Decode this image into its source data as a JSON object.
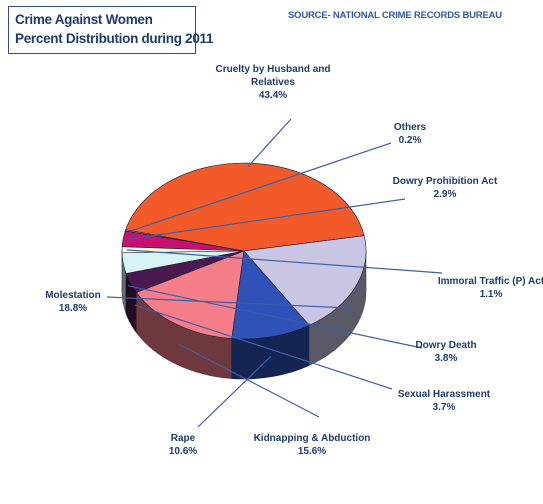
{
  "title_lines": [
    "Crime Against Women",
    "Percent Distribution during 2011"
  ],
  "source": "SOURCE- NATIONAL CRIME RECORDS BUREAU",
  "chart_data": {
    "type": "pie",
    "title": "Crime Against Women Percent Distribution during 2011",
    "slices": [
      {
        "label": [
          "Cruelty by Husband and",
          "Relatives"
        ],
        "value_label": "43.4%",
        "value": 43.4,
        "color": "#f25a2a"
      },
      {
        "label": [
          "Others"
        ],
        "value_label": "0.2%",
        "value": 0.2,
        "color": "#d8d8e8"
      },
      {
        "label": [
          "Dowry Prohibition Act"
        ],
        "value_label": "2.9%",
        "value": 2.9,
        "color": "#c8106e"
      },
      {
        "label": [
          "Immoral Traffic (P) Act"
        ],
        "value_label": "1.1%",
        "value": 1.1,
        "color": "#ffffd8"
      },
      {
        "label": [
          "Dowry Death"
        ],
        "value_label": "3.8%",
        "value": 3.8,
        "color": "#d6f4f6"
      },
      {
        "label": [
          "Sexual Harassment"
        ],
        "value_label": "3.7%",
        "value": 3.7,
        "color": "#4a1a4e"
      },
      {
        "label": [
          "Kidnapping & Abduction"
        ],
        "value_label": "15.6%",
        "value": 15.6,
        "color": "#f57e88"
      },
      {
        "label": [
          "Rape"
        ],
        "value_label": "10.6%",
        "value": 10.6,
        "color": "#2f52b8"
      },
      {
        "label": [
          "Molestation"
        ],
        "value_label": "18.8%",
        "value": 18.8,
        "color": "#c9c6e4"
      }
    ]
  }
}
